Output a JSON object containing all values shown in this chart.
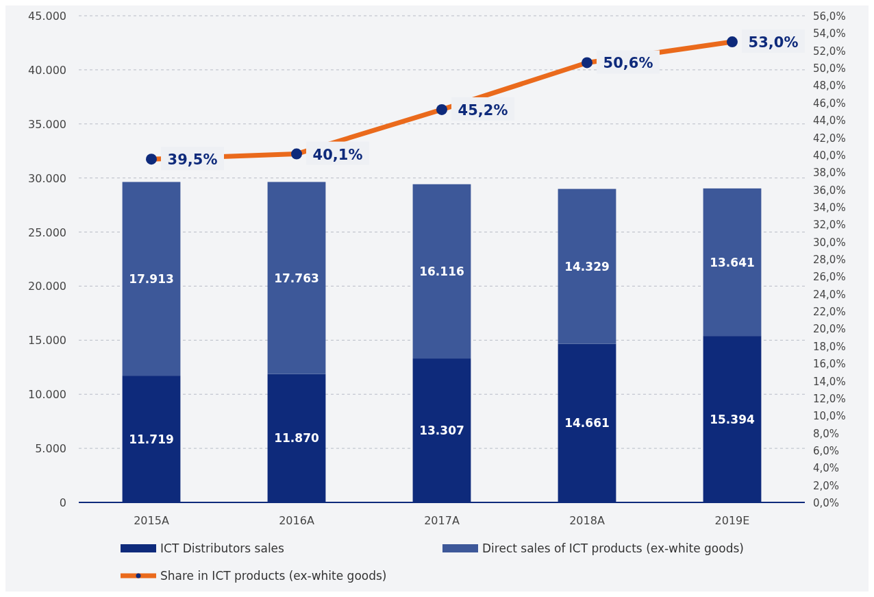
{
  "chart_data": {
    "type": "bar",
    "stacked": true,
    "categories": [
      "2015A",
      "2016A",
      "2017A",
      "2018A",
      "2019E"
    ],
    "series": [
      {
        "name": "ICT Distributors sales",
        "color": "#0e2a7b",
        "values": [
          11719,
          11870,
          13307,
          14661,
          15394
        ],
        "value_labels": [
          "11.719",
          "11.870",
          "13.307",
          "14.661",
          "15.394"
        ]
      },
      {
        "name": "Direct sales of ICT products (ex-white goods)",
        "color": "#3d5899",
        "values": [
          17913,
          17763,
          16116,
          14329,
          13641
        ],
        "value_labels": [
          "17.913",
          "17.763",
          "16.116",
          "14.329",
          "13.641"
        ]
      },
      {
        "name": "Share in ICT products (ex-white goods)",
        "type": "line",
        "axis": "y2",
        "color": "#ea6a1c",
        "marker": "circle",
        "values": [
          39.5,
          40.1,
          45.2,
          50.6,
          53.0
        ],
        "value_labels": [
          "39,5%",
          "40,1%",
          "45,2%",
          "50,6%",
          "53,0%"
        ]
      }
    ],
    "ylim": [
      0,
      45000
    ],
    "yticks": [
      {
        "value": 0,
        "label": "0"
      },
      {
        "value": 5000,
        "label": "5.000"
      },
      {
        "value": 10000,
        "label": "10.000"
      },
      {
        "value": 15000,
        "label": "15.000"
      },
      {
        "value": 20000,
        "label": "20.000"
      },
      {
        "value": 25000,
        "label": "25.000"
      },
      {
        "value": 30000,
        "label": "30.000"
      },
      {
        "value": 35000,
        "label": "35.000"
      },
      {
        "value": 40000,
        "label": "40.000"
      },
      {
        "value": 45000,
        "label": "45.000"
      }
    ],
    "y2lim": [
      0,
      56
    ],
    "y2ticks": [
      {
        "value": 0,
        "label": "0,0%"
      },
      {
        "value": 2,
        "label": "2,0%"
      },
      {
        "value": 4,
        "label": "4,0%"
      },
      {
        "value": 6,
        "label": "6,0%"
      },
      {
        "value": 8,
        "label": "8,0%"
      },
      {
        "value": 10,
        "label": "10,0%"
      },
      {
        "value": 12,
        "label": "12,0%"
      },
      {
        "value": 14,
        "label": "14,0%"
      },
      {
        "value": 16,
        "label": "16,0%"
      },
      {
        "value": 18,
        "label": "18,0%"
      },
      {
        "value": 20,
        "label": "20,0%"
      },
      {
        "value": 22,
        "label": "22,0%"
      },
      {
        "value": 24,
        "label": "24,0%"
      },
      {
        "value": 26,
        "label": "26,0%"
      },
      {
        "value": 28,
        "label": "28,0%"
      },
      {
        "value": 30,
        "label": "30,0%"
      },
      {
        "value": 32,
        "label": "32,0%"
      },
      {
        "value": 34,
        "label": "34,0%"
      },
      {
        "value": 36,
        "label": "36,0%"
      },
      {
        "value": 38,
        "label": "38,0%"
      },
      {
        "value": 40,
        "label": "40,0%"
      },
      {
        "value": 42,
        "label": "42,0%"
      },
      {
        "value": 44,
        "label": "44,0%"
      },
      {
        "value": 46,
        "label": "46,0%"
      },
      {
        "value": 48,
        "label": "48,0%"
      },
      {
        "value": 50,
        "label": "50,0%"
      },
      {
        "value": 52,
        "label": "52,0%"
      },
      {
        "value": 54,
        "label": "54,0%"
      },
      {
        "value": 56,
        "label": "56,0%"
      }
    ],
    "grid": "y",
    "legend": "bottom"
  }
}
